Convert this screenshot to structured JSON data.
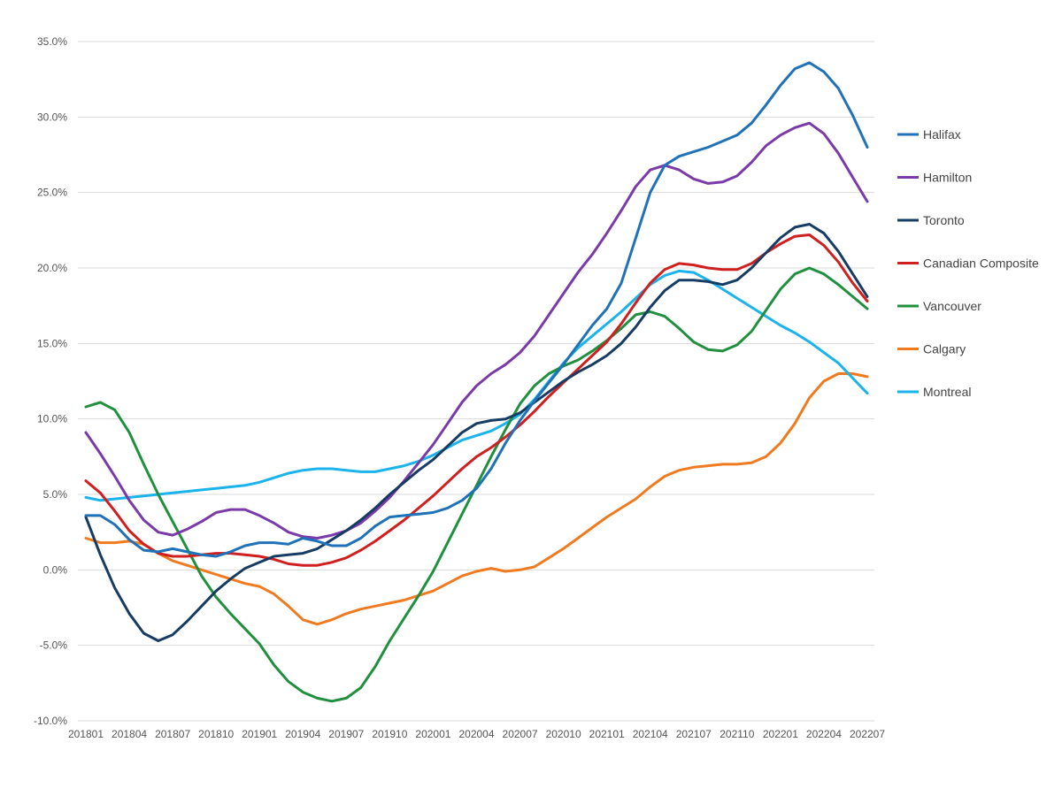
{
  "chart_data": {
    "type": "line",
    "title": "",
    "xlabel": "",
    "ylabel": "",
    "ylim": [
      -10,
      35
    ],
    "yticks": [
      35,
      30,
      25,
      20,
      15,
      10,
      5,
      0,
      -5,
      -10
    ],
    "ytick_labels": [
      "35.0%",
      "30.0%",
      "25.0%",
      "20.0%",
      "15.0%",
      "10.0%",
      "5.0%",
      "0.0%",
      "-5.0%",
      "-10.0%"
    ],
    "x": [
      "201801",
      "201802",
      "201803",
      "201804",
      "201805",
      "201806",
      "201807",
      "201808",
      "201809",
      "201810",
      "201811",
      "201812",
      "201901",
      "201902",
      "201903",
      "201904",
      "201905",
      "201906",
      "201907",
      "201908",
      "201909",
      "201910",
      "201911",
      "201912",
      "202001",
      "202002",
      "202003",
      "202004",
      "202005",
      "202006",
      "202007",
      "202008",
      "202009",
      "202010",
      "202011",
      "202012",
      "202101",
      "202102",
      "202103",
      "202104",
      "202105",
      "202106",
      "202107",
      "202108",
      "202109",
      "202110",
      "202111",
      "202112",
      "202201",
      "202202",
      "202203",
      "202204",
      "202205",
      "202206",
      "202207"
    ],
    "xtick_labels": [
      "201801",
      "201804",
      "201807",
      "201810",
      "201901",
      "201904",
      "201907",
      "201910",
      "202001",
      "202004",
      "202007",
      "202010",
      "202101",
      "202104",
      "202107",
      "202110",
      "202201",
      "202204",
      "202207"
    ],
    "grid": true,
    "legend_position": "right",
    "series": [
      {
        "name": "Halifax",
        "color": "#1f72b8",
        "values": [
          3.6,
          3.6,
          3.0,
          2.0,
          1.3,
          1.2,
          1.4,
          1.2,
          1.0,
          0.9,
          1.2,
          1.6,
          1.8,
          1.8,
          1.7,
          2.1,
          1.9,
          1.6,
          1.6,
          2.1,
          2.9,
          3.5,
          3.6,
          3.7,
          3.8,
          4.1,
          4.6,
          5.4,
          6.7,
          8.4,
          9.9,
          11.2,
          12.4,
          13.6,
          14.9,
          16.2,
          17.3,
          19.0,
          22.0,
          25.0,
          26.8,
          27.4,
          27.7,
          28.0,
          28.4,
          28.8,
          29.6,
          30.8,
          32.1,
          33.2,
          33.6,
          33.0,
          31.9,
          30.1,
          28.0
        ]
      },
      {
        "name": "Hamilton",
        "color": "#7a3aa8",
        "values": [
          9.1,
          7.7,
          6.2,
          4.6,
          3.3,
          2.5,
          2.3,
          2.7,
          3.2,
          3.8,
          4.0,
          4.0,
          3.6,
          3.1,
          2.5,
          2.2,
          2.1,
          2.3,
          2.6,
          3.1,
          3.9,
          4.8,
          5.9,
          7.1,
          8.3,
          9.7,
          11.1,
          12.2,
          13.0,
          13.6,
          14.4,
          15.5,
          16.9,
          18.3,
          19.7,
          20.9,
          22.3,
          23.8,
          25.4,
          26.5,
          26.8,
          26.5,
          25.9,
          25.6,
          25.7,
          26.1,
          27.0,
          28.1,
          28.8,
          29.3,
          29.6,
          28.9,
          27.6,
          26.0,
          24.4
        ]
      },
      {
        "name": "Toronto",
        "color": "#173c63",
        "values": [
          3.5,
          1.0,
          -1.2,
          -2.9,
          -4.2,
          -4.7,
          -4.3,
          -3.4,
          -2.4,
          -1.4,
          -0.6,
          0.1,
          0.5,
          0.9,
          1.0,
          1.1,
          1.4,
          2.0,
          2.6,
          3.3,
          4.1,
          5.0,
          5.8,
          6.6,
          7.3,
          8.2,
          9.1,
          9.7,
          9.9,
          10.0,
          10.4,
          11.1,
          11.8,
          12.5,
          13.1,
          13.6,
          14.2,
          15.0,
          16.1,
          17.4,
          18.5,
          19.2,
          19.2,
          19.1,
          18.9,
          19.2,
          20.0,
          21.0,
          22.0,
          22.7,
          22.9,
          22.3,
          21.1,
          19.6,
          18.1
        ]
      },
      {
        "name": "Canadian Composite",
        "color": "#cf1f1f",
        "values": [
          5.9,
          5.1,
          3.9,
          2.6,
          1.7,
          1.1,
          0.9,
          0.9,
          1.0,
          1.1,
          1.1,
          1.0,
          0.9,
          0.7,
          0.4,
          0.3,
          0.3,
          0.5,
          0.8,
          1.3,
          1.9,
          2.6,
          3.3,
          4.1,
          4.9,
          5.8,
          6.7,
          7.5,
          8.1,
          8.8,
          9.6,
          10.5,
          11.5,
          12.4,
          13.3,
          14.2,
          15.1,
          16.3,
          17.7,
          19.0,
          19.9,
          20.3,
          20.2,
          20.0,
          19.9,
          19.9,
          20.3,
          21.0,
          21.6,
          22.1,
          22.2,
          21.5,
          20.4,
          19.0,
          17.8
        ]
      },
      {
        "name": "Vancouver",
        "color": "#20903f",
        "values": [
          10.8,
          11.1,
          10.6,
          9.1,
          7.0,
          5.0,
          3.2,
          1.4,
          -0.4,
          -1.8,
          -2.9,
          -3.9,
          -4.9,
          -6.3,
          -7.4,
          -8.1,
          -8.5,
          -8.7,
          -8.5,
          -7.8,
          -6.4,
          -4.7,
          -3.2,
          -1.7,
          -0.1,
          1.8,
          3.7,
          5.6,
          7.5,
          9.3,
          11.0,
          12.2,
          13.0,
          13.5,
          13.9,
          14.5,
          15.2,
          16.0,
          16.9,
          17.1,
          16.8,
          16.0,
          15.1,
          14.6,
          14.5,
          14.9,
          15.8,
          17.2,
          18.6,
          19.6,
          20.0,
          19.6,
          18.9,
          18.1,
          17.3
        ]
      },
      {
        "name": "Calgary",
        "color": "#f07a1f",
        "values": [
          2.1,
          1.8,
          1.8,
          1.9,
          1.7,
          1.1,
          0.6,
          0.3,
          0.0,
          -0.3,
          -0.6,
          -0.9,
          -1.1,
          -1.6,
          -2.4,
          -3.3,
          -3.6,
          -3.3,
          -2.9,
          -2.6,
          -2.4,
          -2.2,
          -2.0,
          -1.7,
          -1.4,
          -0.9,
          -0.4,
          -0.1,
          0.1,
          -0.1,
          0.0,
          0.2,
          0.8,
          1.4,
          2.1,
          2.8,
          3.5,
          4.1,
          4.7,
          5.5,
          6.2,
          6.6,
          6.8,
          6.9,
          7.0,
          7.0,
          7.1,
          7.5,
          8.4,
          9.7,
          11.4,
          12.5,
          13.0,
          13.0,
          12.8
        ]
      },
      {
        "name": "Montreal",
        "color": "#1ab3ea",
        "values": [
          4.8,
          4.6,
          4.7,
          4.8,
          4.9,
          5.0,
          5.1,
          5.2,
          5.3,
          5.4,
          5.5,
          5.6,
          5.8,
          6.1,
          6.4,
          6.6,
          6.7,
          6.7,
          6.6,
          6.5,
          6.5,
          6.7,
          6.9,
          7.2,
          7.6,
          8.1,
          8.6,
          8.9,
          9.2,
          9.7,
          10.3,
          11.3,
          12.5,
          13.7,
          14.7,
          15.5,
          16.3,
          17.1,
          18.0,
          18.9,
          19.5,
          19.8,
          19.7,
          19.2,
          18.6,
          18.0,
          17.4,
          16.8,
          16.2,
          15.7,
          15.1,
          14.4,
          13.7,
          12.7,
          11.7
        ]
      }
    ]
  }
}
